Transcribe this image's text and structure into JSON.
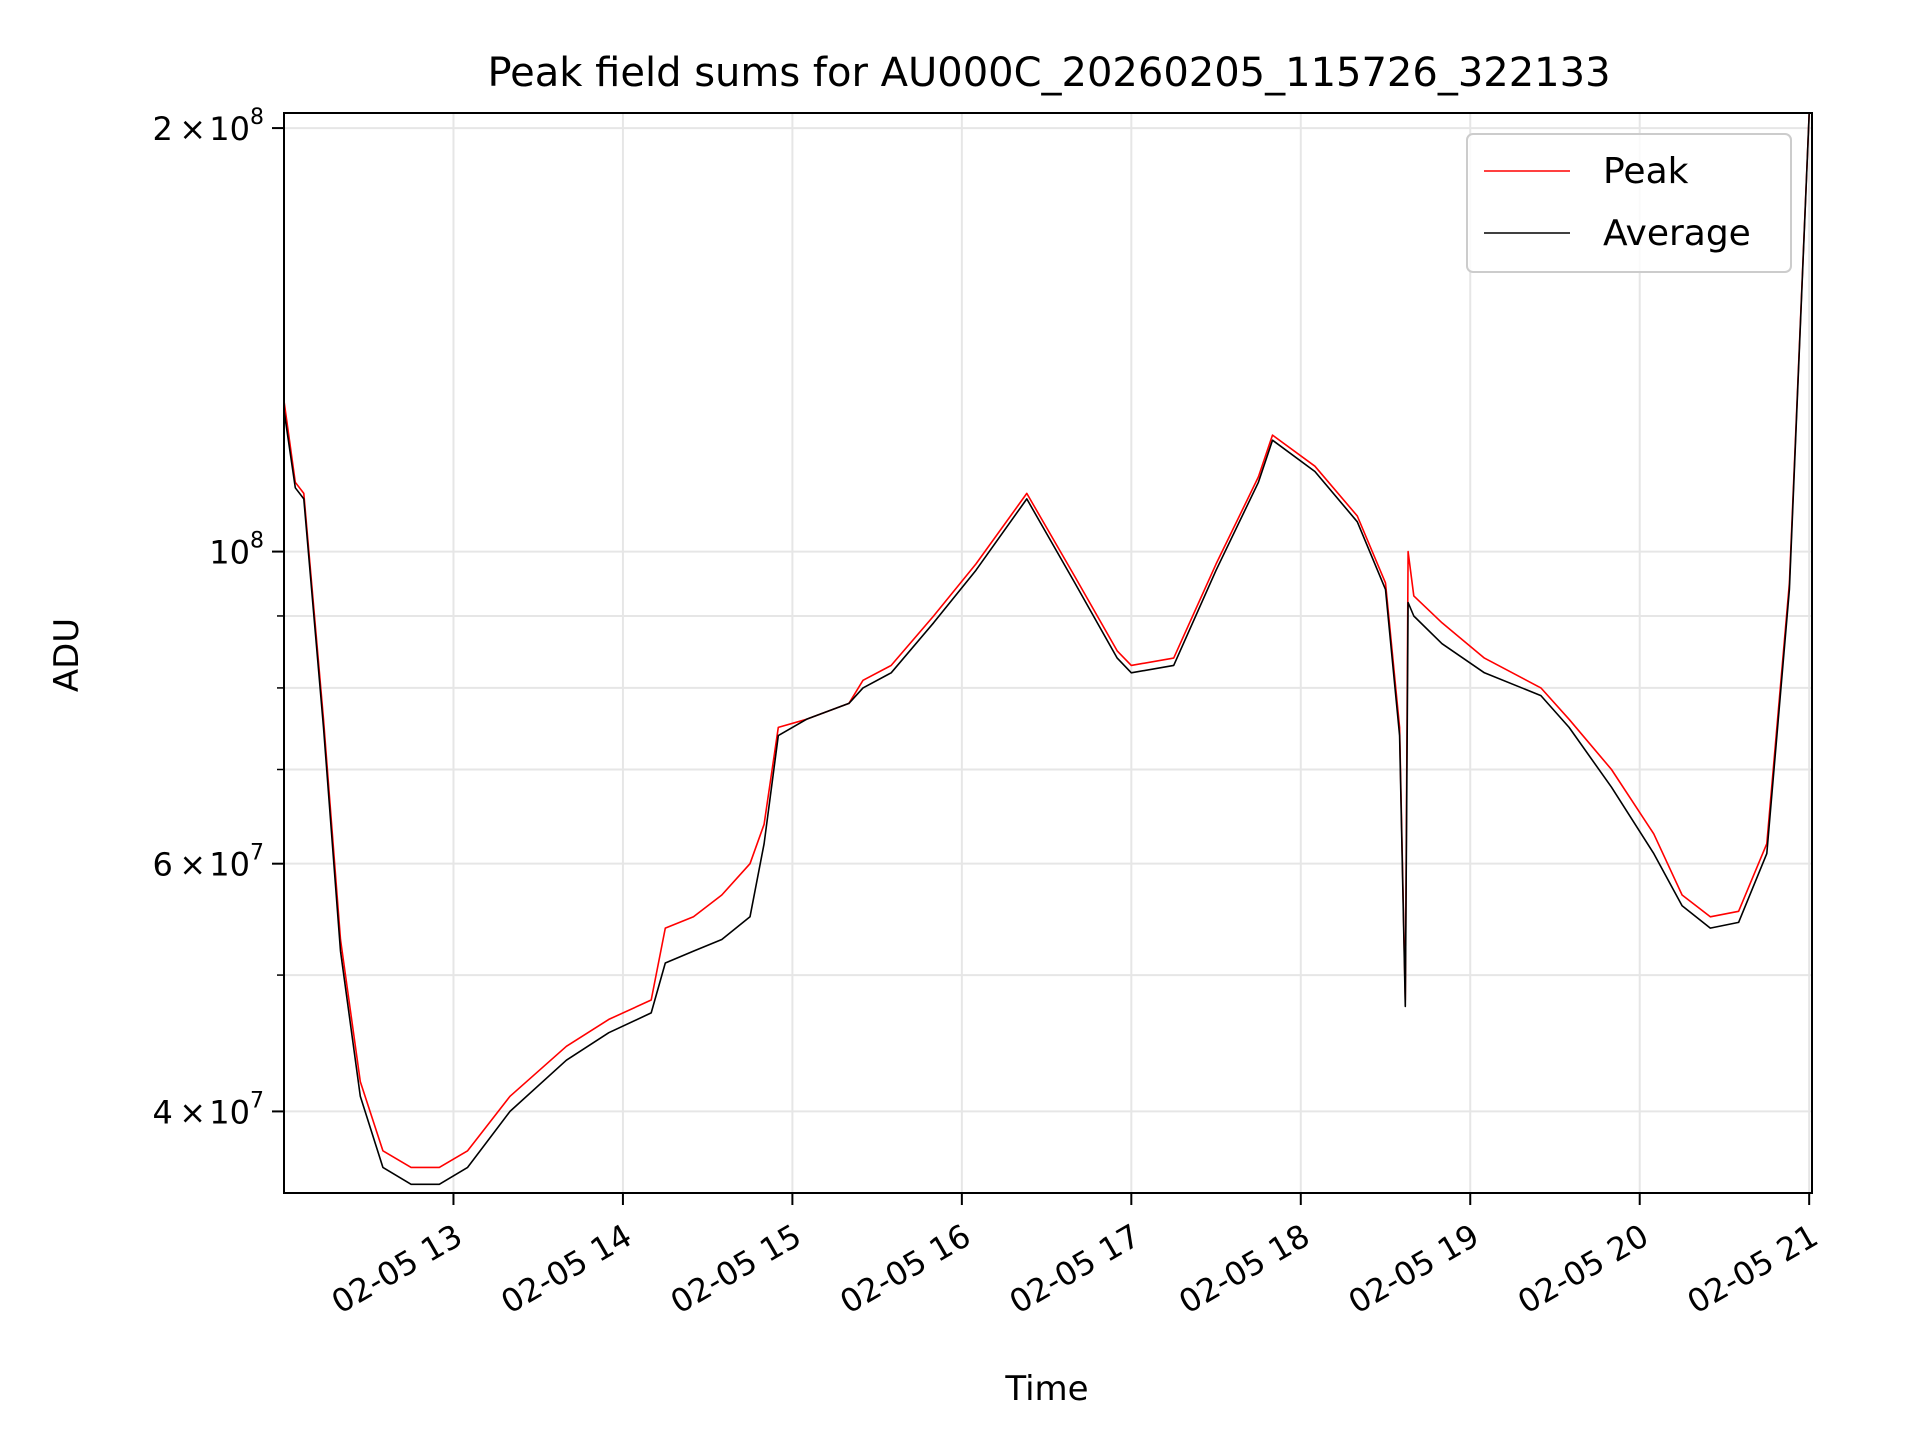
{
  "chart_data": {
    "type": "line",
    "title": "Peak field sums for AU000C_20260205_115726_322133",
    "xlabel": "Time",
    "ylabel": "ADU",
    "yscale": "log",
    "grid": true,
    "legend_position": "top-right",
    "xlim": [
      "2026-02-05 12:00",
      "2026-02-05 21:01"
    ],
    "ylim": [
      35000000,
      205000000
    ],
    "x_ticks": [
      {
        "value": "2026-02-05 13:00",
        "label": "02-05 13"
      },
      {
        "value": "2026-02-05 14:00",
        "label": "02-05 14"
      },
      {
        "value": "2026-02-05 15:00",
        "label": "02-05 15"
      },
      {
        "value": "2026-02-05 16:00",
        "label": "02-05 16"
      },
      {
        "value": "2026-02-05 17:00",
        "label": "02-05 17"
      },
      {
        "value": "2026-02-05 18:00",
        "label": "02-05 18"
      },
      {
        "value": "2026-02-05 19:00",
        "label": "02-05 19"
      },
      {
        "value": "2026-02-05 20:00",
        "label": "02-05 20"
      },
      {
        "value": "2026-02-05 21:00",
        "label": "02-05 21"
      }
    ],
    "y_major_ticks": [
      {
        "value": 40000000,
        "mantissa": "4",
        "base": "10",
        "exp": "7"
      },
      {
        "value": 60000000,
        "mantissa": "6",
        "base": "10",
        "exp": "7"
      },
      {
        "value": 100000000,
        "mantissa": "",
        "base": "10",
        "exp": "8"
      },
      {
        "value": 200000000,
        "mantissa": "2",
        "base": "10",
        "exp": "8"
      }
    ],
    "y_minor_ticks": [
      50000000,
      70000000,
      80000000,
      90000000
    ],
    "series": [
      {
        "name": "Peak",
        "color": "#ff0000",
        "x": [
          "2026-02-05 12:00",
          "2026-02-05 12:04",
          "2026-02-05 12:07",
          "2026-02-05 12:14",
          "2026-02-05 12:20",
          "2026-02-05 12:27",
          "2026-02-05 12:35",
          "2026-02-05 12:45",
          "2026-02-05 12:55",
          "2026-02-05 13:05",
          "2026-02-05 13:20",
          "2026-02-05 13:40",
          "2026-02-05 13:55",
          "2026-02-05 14:10",
          "2026-02-05 14:15",
          "2026-02-05 14:25",
          "2026-02-05 14:35",
          "2026-02-05 14:45",
          "2026-02-05 14:50",
          "2026-02-05 14:55",
          "2026-02-05 15:05",
          "2026-02-05 15:20",
          "2026-02-05 15:25",
          "2026-02-05 15:35",
          "2026-02-05 15:50",
          "2026-02-05 16:05",
          "2026-02-05 16:23",
          "2026-02-05 16:40",
          "2026-02-05 16:55",
          "2026-02-05 17:00",
          "2026-02-05 17:15",
          "2026-02-05 17:30",
          "2026-02-05 17:45",
          "2026-02-05 17:50",
          "2026-02-05 18:05",
          "2026-02-05 18:20",
          "2026-02-05 18:30",
          "2026-02-05 18:35",
          "2026-02-05 18:37",
          "2026-02-05 18:38",
          "2026-02-05 18:40",
          "2026-02-05 18:50",
          "2026-02-05 19:05",
          "2026-02-05 19:25",
          "2026-02-05 19:35",
          "2026-02-05 19:50",
          "2026-02-05 20:05",
          "2026-02-05 20:15",
          "2026-02-05 20:25",
          "2026-02-05 20:35",
          "2026-02-05 20:45",
          "2026-02-05 20:53",
          "2026-02-05 21:00"
        ],
        "values": [
          128000000,
          112000000,
          110000000,
          76000000,
          53000000,
          42000000,
          37500000,
          36500000,
          36500000,
          37500000,
          41000000,
          44500000,
          46500000,
          48000000,
          54000000,
          55000000,
          57000000,
          60000000,
          64000000,
          75000000,
          76000000,
          78000000,
          81000000,
          83000000,
          90000000,
          98000000,
          110000000,
          96000000,
          85000000,
          83000000,
          84000000,
          98000000,
          113000000,
          121000000,
          115000000,
          106000000,
          95000000,
          75000000,
          48000000,
          100000000,
          93000000,
          89000000,
          84000000,
          80000000,
          76000000,
          70000000,
          63000000,
          57000000,
          55000000,
          55500000,
          62000000,
          95000000,
          205000000
        ]
      },
      {
        "name": "Average",
        "color": "#000000",
        "x": [
          "2026-02-05 12:00",
          "2026-02-05 12:04",
          "2026-02-05 12:07",
          "2026-02-05 12:14",
          "2026-02-05 12:20",
          "2026-02-05 12:27",
          "2026-02-05 12:35",
          "2026-02-05 12:45",
          "2026-02-05 12:55",
          "2026-02-05 13:05",
          "2026-02-05 13:20",
          "2026-02-05 13:40",
          "2026-02-05 13:55",
          "2026-02-05 14:10",
          "2026-02-05 14:15",
          "2026-02-05 14:25",
          "2026-02-05 14:35",
          "2026-02-05 14:45",
          "2026-02-05 14:50",
          "2026-02-05 14:55",
          "2026-02-05 15:05",
          "2026-02-05 15:20",
          "2026-02-05 15:25",
          "2026-02-05 15:35",
          "2026-02-05 15:50",
          "2026-02-05 16:05",
          "2026-02-05 16:23",
          "2026-02-05 16:40",
          "2026-02-05 16:55",
          "2026-02-05 17:00",
          "2026-02-05 17:15",
          "2026-02-05 17:30",
          "2026-02-05 17:45",
          "2026-02-05 17:50",
          "2026-02-05 18:05",
          "2026-02-05 18:20",
          "2026-02-05 18:30",
          "2026-02-05 18:35",
          "2026-02-05 18:37",
          "2026-02-05 18:38",
          "2026-02-05 18:40",
          "2026-02-05 18:50",
          "2026-02-05 19:05",
          "2026-02-05 19:25",
          "2026-02-05 19:35",
          "2026-02-05 19:50",
          "2026-02-05 20:05",
          "2026-02-05 20:15",
          "2026-02-05 20:25",
          "2026-02-05 20:35",
          "2026-02-05 20:45",
          "2026-02-05 20:53",
          "2026-02-05 21:00"
        ],
        "values": [
          126000000,
          111000000,
          109000000,
          75000000,
          52000000,
          41000000,
          36500000,
          35500000,
          35500000,
          36500000,
          40000000,
          43500000,
          45500000,
          47000000,
          51000000,
          52000000,
          53000000,
          55000000,
          62000000,
          74000000,
          76000000,
          78000000,
          80000000,
          82000000,
          89000000,
          97000000,
          109000000,
          95000000,
          84000000,
          82000000,
          83000000,
          97000000,
          112000000,
          120000000,
          114000000,
          105000000,
          94000000,
          74000000,
          47500000,
          92000000,
          90000000,
          86000000,
          82000000,
          79000000,
          75000000,
          68000000,
          61000000,
          56000000,
          54000000,
          54500000,
          61000000,
          94000000,
          205000000
        ]
      }
    ]
  }
}
